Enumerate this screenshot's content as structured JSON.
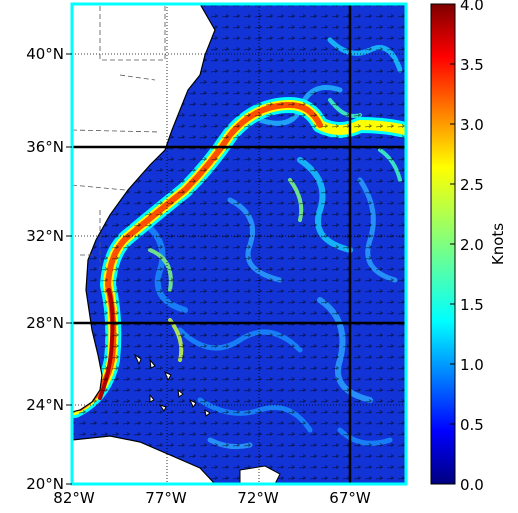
{
  "map": {
    "lat_labels": [
      "40°N",
      "36°N",
      "32°N",
      "28°N",
      "24°N",
      "20°N"
    ],
    "lon_labels": [
      "82°W",
      "77°W",
      "72°W",
      "67°W"
    ],
    "bold_lines": {
      "latitudes": [
        "36°N",
        "28°N"
      ],
      "longitudes": [
        "67°W"
      ]
    },
    "frame_color": "#00ffff",
    "ocean_base_color": "#1030d8",
    "land_color": "#ffffff",
    "current_name_visible": false
  },
  "colorbar": {
    "label": "Knots",
    "ticks": [
      "4.0",
      "3.5",
      "3.0",
      "2.5",
      "2.0",
      "1.5",
      "1.0",
      "0.5",
      "0.0"
    ],
    "range": [
      0.0,
      4.0
    ],
    "colormap": "jet",
    "colors": [
      "#00007f",
      "#0000ff",
      "#00ffff",
      "#7fff7f",
      "#ffff00",
      "#ff7f00",
      "#ff0000",
      "#7f0000"
    ]
  }
}
